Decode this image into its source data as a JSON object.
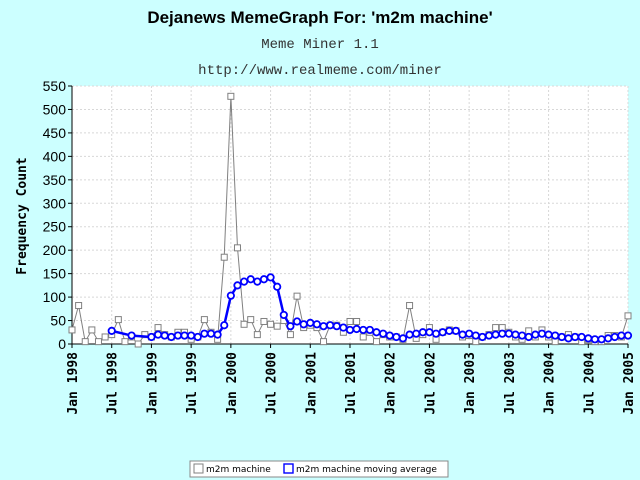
{
  "chart_data": {
    "type": "line",
    "title": "Dejanews MemeGraph For: 'm2m machine'",
    "subtitle": "Meme Miner 1.1",
    "url": "http://www.realmeme.com/miner",
    "ylabel": "Frequency Count",
    "xlabel": "",
    "ylim": [
      0,
      550
    ],
    "xlim": [
      "1998-01",
      "2005-01"
    ],
    "y_ticks": [
      0,
      50,
      100,
      150,
      200,
      250,
      300,
      350,
      400,
      450,
      500,
      550
    ],
    "x_ticks": [
      "Jan 1998",
      "Jul 1998",
      "Jan 1999",
      "Jul 1999",
      "Jan 2000",
      "Jul 2000",
      "Jan 2001",
      "Jul 2001",
      "Jan 2002",
      "Jul 2002",
      "Jan 2003",
      "Jul 2003",
      "Jan 2004",
      "Jul 2004",
      "Jan 2005"
    ],
    "grid": true,
    "legend_position": "bottom",
    "series": [
      {
        "name": "m2m machine",
        "color": "#808080",
        "marker": "open-square",
        "x": [
          "1998-01",
          "1998-02",
          "1998-03",
          "1998-04",
          "1998-05",
          "1998-06",
          "1998-07",
          "1998-08",
          "1998-09",
          "1998-10",
          "1998-11",
          "1998-12",
          "1999-01",
          "1999-02",
          "1999-03",
          "1999-04",
          "1999-05",
          "1999-06",
          "1999-07",
          "1999-08",
          "1999-09",
          "1999-10",
          "1999-11",
          "1999-12",
          "2000-01",
          "2000-02",
          "2000-03",
          "2000-04",
          "2000-05",
          "2000-06",
          "2000-07",
          "2000-08",
          "2000-09",
          "2000-10",
          "2000-11",
          "2000-12",
          "2001-01",
          "2001-02",
          "2001-03",
          "2001-04",
          "2001-05",
          "2001-06",
          "2001-07",
          "2001-08",
          "2001-09",
          "2001-10",
          "2001-11",
          "2001-12",
          "2002-01",
          "2002-02",
          "2002-03",
          "2002-04",
          "2002-05",
          "2002-06",
          "2002-07",
          "2002-08",
          "2002-09",
          "2002-10",
          "2002-11",
          "2002-12",
          "2003-01",
          "2003-02",
          "2003-03",
          "2003-04",
          "2003-05",
          "2003-06",
          "2003-07",
          "2003-08",
          "2003-09",
          "2003-10",
          "2003-11",
          "2003-12",
          "2004-01",
          "2004-02",
          "2004-03",
          "2004-04",
          "2004-05",
          "2004-06",
          "2004-07",
          "2004-08",
          "2004-09",
          "2004-10",
          "2004-11",
          "2004-12",
          "2005-01"
        ],
        "values": [
          30,
          82,
          5,
          30,
          5,
          15,
          20,
          52,
          5,
          15,
          0,
          20,
          15,
          35,
          20,
          15,
          25,
          25,
          10,
          15,
          52,
          25,
          10,
          185,
          528,
          205,
          42,
          52,
          20,
          48,
          42,
          38,
          50,
          20,
          102,
          35,
          40,
          35,
          5,
          40,
          40,
          25,
          48,
          48,
          15,
          25,
          5,
          20,
          15,
          15,
          10,
          82,
          12,
          20,
          35,
          10,
          25,
          30,
          28,
          15,
          18,
          5,
          15,
          20,
          35,
          35,
          25,
          15,
          10,
          28,
          15,
          30,
          15,
          5,
          15,
          20,
          15,
          5,
          10,
          5,
          5,
          18,
          18,
          15,
          60
        ]
      },
      {
        "name": "m2m machine moving average",
        "color": "#0000ff",
        "marker": "open-circle",
        "x": [
          "1998-07",
          "1998-10",
          "1999-01",
          "1999-02",
          "1999-03",
          "1999-04",
          "1999-05",
          "1999-06",
          "1999-07",
          "1999-08",
          "1999-09",
          "1999-10",
          "1999-11",
          "1999-12",
          "2000-01",
          "2000-02",
          "2000-03",
          "2000-04",
          "2000-05",
          "2000-06",
          "2000-07",
          "2000-08",
          "2000-09",
          "2000-10",
          "2000-11",
          "2000-12",
          "2001-01",
          "2001-02",
          "2001-03",
          "2001-04",
          "2001-05",
          "2001-06",
          "2001-07",
          "2001-08",
          "2001-09",
          "2001-10",
          "2001-11",
          "2001-12",
          "2002-01",
          "2002-02",
          "2002-03",
          "2002-04",
          "2002-05",
          "2002-06",
          "2002-07",
          "2002-08",
          "2002-09",
          "2002-10",
          "2002-11",
          "2002-12",
          "2003-01",
          "2003-02",
          "2003-03",
          "2003-04",
          "2003-05",
          "2003-06",
          "2003-07",
          "2003-08",
          "2003-09",
          "2003-10",
          "2003-11",
          "2003-12",
          "2004-01",
          "2004-02",
          "2004-03",
          "2004-04",
          "2004-05",
          "2004-06",
          "2004-07",
          "2004-08",
          "2004-09",
          "2004-10",
          "2004-11",
          "2004-12",
          "2005-01"
        ],
        "values": [
          28,
          18,
          15,
          20,
          18,
          15,
          18,
          18,
          18,
          15,
          22,
          22,
          20,
          40,
          103,
          125,
          133,
          138,
          133,
          138,
          142,
          122,
          62,
          38,
          48,
          42,
          45,
          42,
          38,
          40,
          38,
          35,
          30,
          32,
          30,
          30,
          25,
          22,
          18,
          15,
          12,
          20,
          22,
          25,
          25,
          22,
          25,
          28,
          28,
          20,
          22,
          18,
          15,
          18,
          20,
          22,
          22,
          20,
          18,
          15,
          20,
          22,
          20,
          18,
          15,
          12,
          15,
          15,
          12,
          10,
          10,
          12,
          15,
          18,
          18
        ]
      }
    ]
  }
}
